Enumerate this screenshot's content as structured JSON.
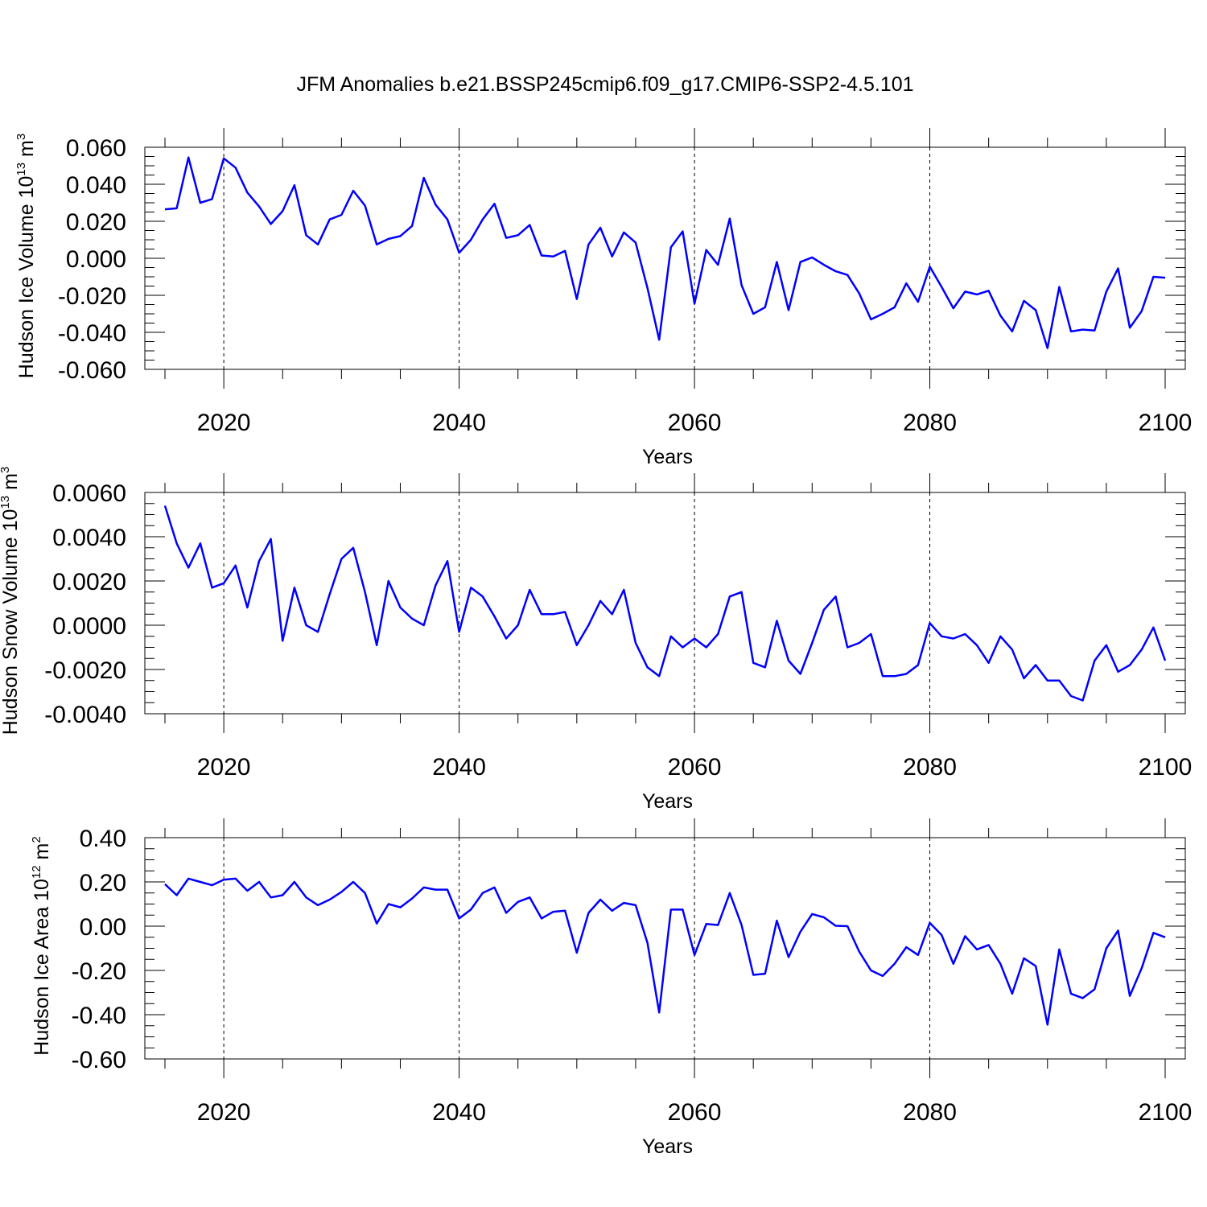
{
  "figure": {
    "title": "JFM Anomalies b.e21.BSSP245cmip6.f09_g17.CMIP6-SSP2-4.5.101"
  },
  "colors": {
    "series": "#0000ff",
    "axis": "#000000",
    "grid": "#000000"
  },
  "chart_data": [
    {
      "type": "line",
      "title": "JFM Anomalies b.e21.BSSP245cmip6.f09_g17.CMIP6-SSP2-4.5.101",
      "xlabel": "Years",
      "ylabel": {
        "base": "Hudson Ice Volume 10",
        "sup1": "13",
        "mid": " m",
        "sup2": "3"
      },
      "xlim": [
        2015,
        2100
      ],
      "ylim": [
        -0.06,
        0.06
      ],
      "xticks": [
        2020,
        2040,
        2060,
        2080,
        2100
      ],
      "xtick_labels": [
        "2020",
        "2040",
        "2060",
        "2080",
        "2100"
      ],
      "yticks": [
        0.06,
        0.04,
        0.02,
        0.0,
        -0.02,
        -0.04,
        -0.06
      ],
      "ytick_labels": [
        "0.060",
        "0.040",
        "0.020",
        "0.000",
        "-0.020",
        "-0.040",
        "-0.060"
      ],
      "grid": "vertical dashed at major x ticks",
      "x": [
        2015,
        2016,
        2017,
        2018,
        2019,
        2020,
        2021,
        2022,
        2023,
        2024,
        2025,
        2026,
        2027,
        2028,
        2029,
        2030,
        2031,
        2032,
        2033,
        2034,
        2035,
        2036,
        2037,
        2038,
        2039,
        2040,
        2041,
        2042,
        2043,
        2044,
        2045,
        2046,
        2047,
        2048,
        2049,
        2050,
        2051,
        2052,
        2053,
        2054,
        2055,
        2056,
        2057,
        2058,
        2059,
        2060,
        2061,
        2062,
        2063,
        2064,
        2065,
        2066,
        2067,
        2068,
        2069,
        2070,
        2071,
        2072,
        2073,
        2074,
        2075,
        2076,
        2077,
        2078,
        2079,
        2080,
        2081,
        2082,
        2083,
        2084,
        2085,
        2086,
        2087,
        2088,
        2089,
        2090,
        2091,
        2092,
        2093,
        2094,
        2095,
        2096,
        2097,
        2098,
        2099,
        2100
      ],
      "series": [
        {
          "values": [
            0.0265,
            0.027,
            0.0545,
            0.03,
            0.032,
            0.054,
            0.049,
            0.0355,
            0.028,
            0.0185,
            0.0255,
            0.0395,
            0.0125,
            0.0075,
            0.021,
            0.0235,
            0.0365,
            0.0285,
            0.0075,
            0.0105,
            0.012,
            0.0175,
            0.0435,
            0.029,
            0.021,
            0.003,
            0.01,
            0.021,
            0.0295,
            0.011,
            0.0125,
            0.018,
            0.0015,
            0.001,
            0.004,
            -0.022,
            0.0075,
            0.0165,
            0.001,
            0.014,
            0.0085,
            -0.016,
            -0.044,
            0.006,
            0.0145,
            -0.0245,
            0.0045,
            -0.0035,
            0.0215,
            -0.0145,
            -0.03,
            -0.0265,
            -0.002,
            -0.028,
            -0.002,
            0.0005,
            -0.0035,
            -0.007,
            -0.009,
            -0.019,
            -0.033,
            -0.03,
            -0.0265,
            -0.0135,
            -0.0235,
            -0.0045,
            -0.0155,
            -0.027,
            -0.018,
            -0.0195,
            -0.0175,
            -0.031,
            -0.0395,
            -0.023,
            -0.028,
            -0.0485,
            -0.0155,
            -0.0395,
            -0.0385,
            -0.039,
            -0.018,
            -0.0055,
            -0.0375,
            -0.0285,
            -0.01,
            -0.0105
          ]
        }
      ]
    },
    {
      "type": "line",
      "xlabel": "Years",
      "ylabel": {
        "base": "Hudson Snow Volume 10",
        "sup1": "13",
        "mid": " m",
        "sup2": "3"
      },
      "xlim": [
        2015,
        2100
      ],
      "ylim": [
        -0.004,
        0.006
      ],
      "xticks": [
        2020,
        2040,
        2060,
        2080,
        2100
      ],
      "xtick_labels": [
        "2020",
        "2040",
        "2060",
        "2080",
        "2100"
      ],
      "yticks": [
        0.006,
        0.004,
        0.002,
        0.0,
        -0.002,
        -0.004
      ],
      "ytick_labels": [
        "0.0060",
        "0.0040",
        "0.0020",
        "0.0000",
        "-0.0020",
        "-0.0040"
      ],
      "grid": "vertical dashed at major x ticks",
      "x": [
        2015,
        2016,
        2017,
        2018,
        2019,
        2020,
        2021,
        2022,
        2023,
        2024,
        2025,
        2026,
        2027,
        2028,
        2029,
        2030,
        2031,
        2032,
        2033,
        2034,
        2035,
        2036,
        2037,
        2038,
        2039,
        2040,
        2041,
        2042,
        2043,
        2044,
        2045,
        2046,
        2047,
        2048,
        2049,
        2050,
        2051,
        2052,
        2053,
        2054,
        2055,
        2056,
        2057,
        2058,
        2059,
        2060,
        2061,
        2062,
        2063,
        2064,
        2065,
        2066,
        2067,
        2068,
        2069,
        2070,
        2071,
        2072,
        2073,
        2074,
        2075,
        2076,
        2077,
        2078,
        2079,
        2080,
        2081,
        2082,
        2083,
        2084,
        2085,
        2086,
        2087,
        2088,
        2089,
        2090,
        2091,
        2092,
        2093,
        2094,
        2095,
        2096,
        2097,
        2098,
        2099,
        2100
      ],
      "series": [
        {
          "values": [
            0.0054,
            0.0037,
            0.0026,
            0.0037,
            0.0017,
            0.0019,
            0.0027,
            0.0008,
            0.0029,
            0.0039,
            -0.0007,
            0.0017,
            0.0,
            -0.0003,
            0.0014,
            0.003,
            0.0035,
            0.0015,
            -0.0009,
            0.002,
            0.0008,
            0.0003,
            0.0,
            0.0018,
            0.0029,
            -0.0003,
            0.0017,
            0.0013,
            0.0004,
            -0.0006,
            0.0,
            0.0016,
            0.0005,
            0.0005,
            0.0006,
            -0.0009,
            0.0,
            0.0011,
            0.0005,
            0.0016,
            -0.0008,
            -0.0019,
            -0.0023,
            -0.0005,
            -0.001,
            -0.0006,
            -0.001,
            -0.0004,
            0.0013,
            0.0015,
            -0.0017,
            -0.0019,
            0.0002,
            -0.0016,
            -0.0022,
            -0.0008,
            0.0007,
            0.0013,
            -0.001,
            -0.0008,
            -0.0004,
            -0.0023,
            -0.0023,
            -0.0022,
            -0.0018,
            0.0001,
            -0.0005,
            -0.0006,
            -0.0004,
            -0.0009,
            -0.0017,
            -0.0005,
            -0.0011,
            -0.0024,
            -0.0018,
            -0.0025,
            -0.0025,
            -0.0032,
            -0.0034,
            -0.0016,
            -0.0009,
            -0.0021,
            -0.0018,
            -0.0011,
            -0.0001,
            -0.0016
          ]
        }
      ]
    },
    {
      "type": "line",
      "xlabel": "Years",
      "ylabel": {
        "base": "Hudson Ice Area 10",
        "sup1": "12",
        "mid": " m",
        "sup2": "2"
      },
      "xlim": [
        2015,
        2100
      ],
      "ylim": [
        -0.6,
        0.4
      ],
      "xticks": [
        2020,
        2040,
        2060,
        2080,
        2100
      ],
      "xtick_labels": [
        "2020",
        "2040",
        "2060",
        "2080",
        "2100"
      ],
      "yticks": [
        0.4,
        0.2,
        0.0,
        -0.2,
        -0.4,
        -0.6
      ],
      "ytick_labels": [
        "0.40",
        "0.20",
        "0.00",
        "-0.20",
        "-0.40",
        "-0.60"
      ],
      "grid": "vertical dashed at major x ticks",
      "x": [
        2015,
        2016,
        2017,
        2018,
        2019,
        2020,
        2021,
        2022,
        2023,
        2024,
        2025,
        2026,
        2027,
        2028,
        2029,
        2030,
        2031,
        2032,
        2033,
        2034,
        2035,
        2036,
        2037,
        2038,
        2039,
        2040,
        2041,
        2042,
        2043,
        2044,
        2045,
        2046,
        2047,
        2048,
        2049,
        2050,
        2051,
        2052,
        2053,
        2054,
        2055,
        2056,
        2057,
        2058,
        2059,
        2060,
        2061,
        2062,
        2063,
        2064,
        2065,
        2066,
        2067,
        2068,
        2069,
        2070,
        2071,
        2072,
        2073,
        2074,
        2075,
        2076,
        2077,
        2078,
        2079,
        2080,
        2081,
        2082,
        2083,
        2084,
        2085,
        2086,
        2087,
        2088,
        2089,
        2090,
        2091,
        2092,
        2093,
        2094,
        2095,
        2096,
        2097,
        2098,
        2099,
        2100
      ],
      "series": [
        {
          "values": [
            0.19,
            0.14,
            0.215,
            0.2,
            0.185,
            0.21,
            0.215,
            0.16,
            0.2,
            0.13,
            0.14,
            0.2,
            0.13,
            0.095,
            0.12,
            0.155,
            0.2,
            0.15,
            0.012,
            0.1,
            0.085,
            0.125,
            0.175,
            0.165,
            0.165,
            0.035,
            0.075,
            0.15,
            0.175,
            0.06,
            0.11,
            0.13,
            0.035,
            0.065,
            0.07,
            -0.12,
            0.06,
            0.12,
            0.07,
            0.105,
            0.095,
            -0.075,
            -0.39,
            0.075,
            0.075,
            -0.13,
            0.01,
            0.005,
            0.15,
            0.005,
            -0.22,
            -0.215,
            0.025,
            -0.14,
            -0.025,
            0.055,
            0.04,
            0.002,
            0.0,
            -0.115,
            -0.2,
            -0.225,
            -0.17,
            -0.095,
            -0.13,
            0.015,
            -0.04,
            -0.17,
            -0.045,
            -0.105,
            -0.085,
            -0.17,
            -0.305,
            -0.145,
            -0.18,
            -0.445,
            -0.105,
            -0.305,
            -0.325,
            -0.285,
            -0.1,
            -0.02,
            -0.315,
            -0.19,
            -0.03,
            -0.05
          ]
        }
      ]
    }
  ]
}
